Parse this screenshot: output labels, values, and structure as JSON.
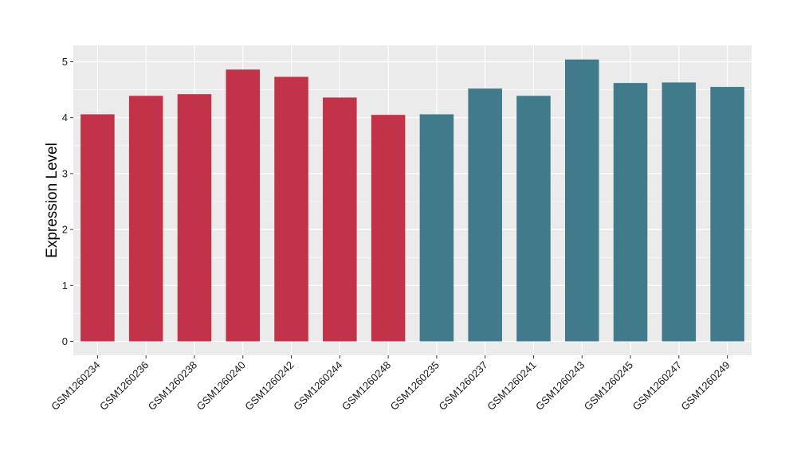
{
  "chart_data": {
    "type": "bar",
    "title": "",
    "xlabel": "",
    "ylabel": "Expression Level",
    "ylim": [
      0,
      5.25
    ],
    "yticks": [
      0,
      1,
      2,
      3,
      4,
      5
    ],
    "grid": true,
    "legend": "none",
    "panel_background": "#EBEBEB",
    "grid_color": "#FFFFFF",
    "categories": [
      "GSM1260234",
      "GSM1260236",
      "GSM1260238",
      "GSM1260240",
      "GSM1260242",
      "GSM1260244",
      "GSM1260248",
      "GSM1260235",
      "GSM1260237",
      "GSM1260241",
      "GSM1260243",
      "GSM1260245",
      "GSM1260247",
      "GSM1260249"
    ],
    "values": [
      4.06,
      4.39,
      4.42,
      4.86,
      4.73,
      4.36,
      4.05,
      4.06,
      4.52,
      4.39,
      5.04,
      4.62,
      4.63,
      4.55
    ],
    "colors": [
      "#C23248",
      "#C23248",
      "#C23248",
      "#C23248",
      "#C23248",
      "#C23248",
      "#C23248",
      "#417A8B",
      "#417A8B",
      "#417A8B",
      "#417A8B",
      "#417A8B",
      "#417A8B",
      "#417A8B"
    ]
  }
}
